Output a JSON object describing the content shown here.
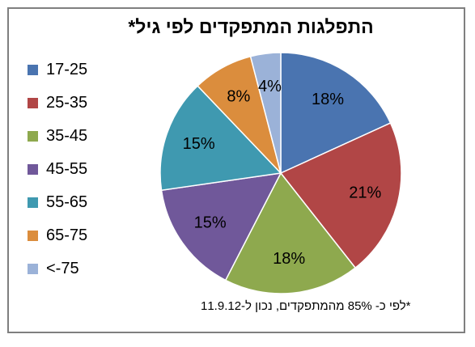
{
  "chart_data": {
    "type": "pie",
    "title": "התפלגות המתפקדים לפי גיל*",
    "categories": [
      "17-25",
      "25-35",
      "35-45",
      "45-55",
      "55-65",
      "65-75",
      "<-75"
    ],
    "values": [
      18,
      21,
      18,
      15,
      15,
      8,
      4
    ],
    "value_labels": [
      "18%",
      "21%",
      "18%",
      "15%",
      "15%",
      "8%",
      "4%"
    ],
    "colors": [
      "#4a74b0",
      "#b14646",
      "#8ea94e",
      "#70589a",
      "#3f99b0",
      "#db8d3d",
      "#9bb2d8"
    ],
    "legend_position": "left",
    "footnote": "*לפי כ- 85% מהמתפקדים, נכון ל-11.9.12"
  }
}
